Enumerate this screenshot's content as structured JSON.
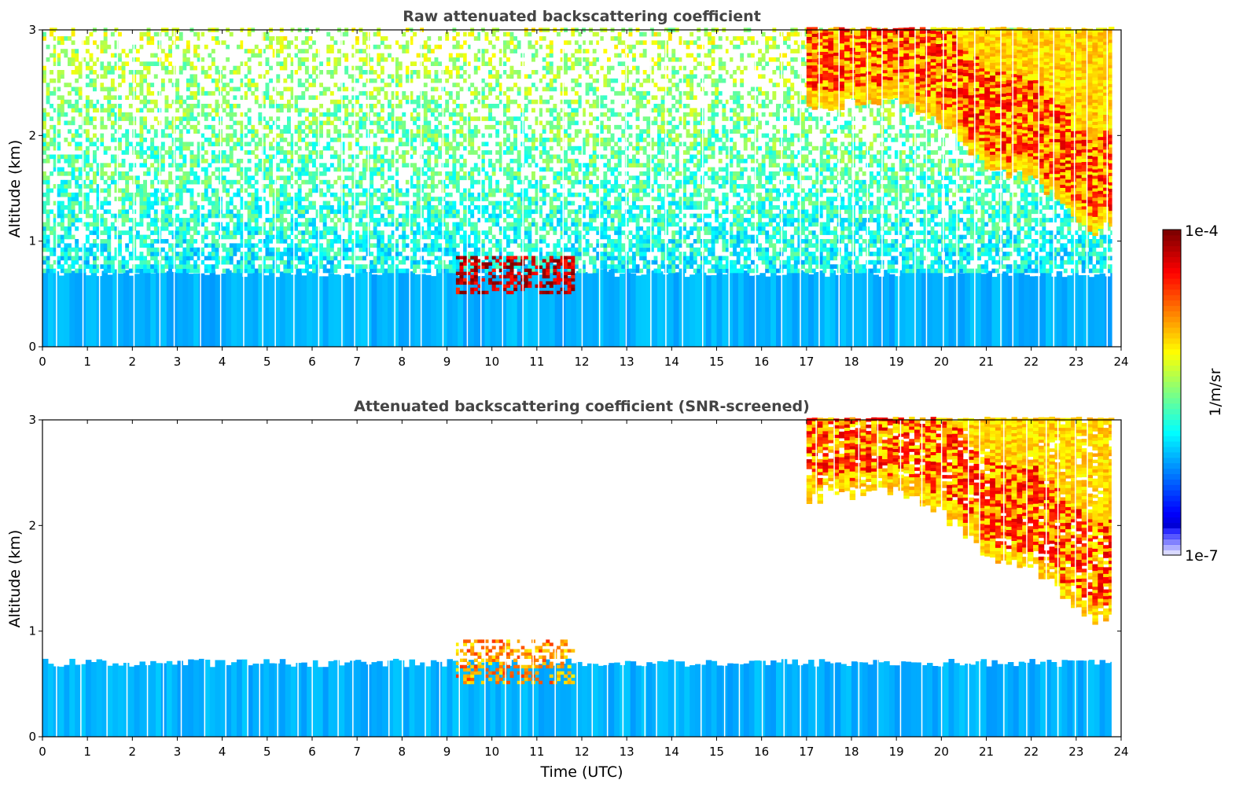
{
  "chart_data": [
    {
      "type": "heatmap",
      "title": "Raw attenuated backscattering coefficient",
      "xlabel": "",
      "ylabel": "Altitude (km)",
      "xlim": [
        0,
        24
      ],
      "ylim": [
        0,
        3
      ],
      "x_ticks": [
        "0",
        "1",
        "2",
        "3",
        "4",
        "5",
        "6",
        "7",
        "8",
        "9",
        "10",
        "11",
        "12",
        "13",
        "14",
        "15",
        "16",
        "17",
        "18",
        "19",
        "20",
        "21",
        "22",
        "23",
        "24"
      ],
      "y_ticks": [
        "0",
        "1",
        "2",
        "3"
      ],
      "colormap": "jet",
      "color_scale": "log",
      "features": [
        {
          "kind": "boundary_layer",
          "x": [
            0,
            23.8
          ],
          "top_km": 0.7,
          "log10_value": -6.1
        },
        {
          "kind": "noise",
          "x": [
            0,
            23.8
          ],
          "y": [
            0.7,
            3.0
          ],
          "log10_value": -6.0
        },
        {
          "kind": "cloud",
          "x": [
            9.2,
            11.8
          ],
          "y": [
            0.5,
            0.85
          ],
          "log10_value": -4.2
        },
        {
          "kind": "cirrus_layer",
          "x": [
            17.0,
            23.8
          ],
          "base_time": [
            17.0,
            18.0,
            19.0,
            20.0,
            21.0,
            22.0,
            22.8,
            23.3,
            23.8
          ],
          "base_km": [
            2.25,
            2.3,
            2.35,
            2.1,
            1.7,
            1.6,
            1.3,
            1.1,
            1.15
          ],
          "log10_value": -5.0,
          "peak_log10_value": -4.4
        }
      ]
    },
    {
      "type": "heatmap",
      "title": "Attenuated backscattering coefficient (SNR-screened)",
      "xlabel": "Time (UTC)",
      "ylabel": "Altitude (km)",
      "xlim": [
        0,
        24
      ],
      "ylim": [
        0,
        3
      ],
      "x_ticks": [
        "0",
        "1",
        "2",
        "3",
        "4",
        "5",
        "6",
        "7",
        "8",
        "9",
        "10",
        "11",
        "12",
        "13",
        "14",
        "15",
        "16",
        "17",
        "18",
        "19",
        "20",
        "21",
        "22",
        "23",
        "24"
      ],
      "y_ticks": [
        "0",
        "1",
        "2",
        "3"
      ],
      "colormap": "jet",
      "color_scale": "log",
      "features": [
        {
          "kind": "boundary_layer",
          "x": [
            0,
            23.8
          ],
          "top_km": 0.7,
          "log10_value": -6.1
        },
        {
          "kind": "cloud",
          "x": [
            9.2,
            11.8
          ],
          "y": [
            0.5,
            0.9
          ],
          "log10_value": -4.8
        },
        {
          "kind": "cirrus_layer",
          "x": [
            17.0,
            23.8
          ],
          "base_time": [
            17.0,
            18.0,
            19.0,
            20.0,
            21.0,
            22.0,
            22.8,
            23.3,
            23.8
          ],
          "base_km": [
            2.25,
            2.3,
            2.35,
            2.1,
            1.7,
            1.6,
            1.3,
            1.1,
            1.15
          ],
          "log10_value": -5.0,
          "peak_log10_value": -4.4
        }
      ]
    }
  ],
  "colorbar": {
    "label": "1/m/sr",
    "min_label": "1e-7",
    "max_label": "1e-4",
    "log10_min": -7,
    "log10_max": -4,
    "colormap": "jet"
  }
}
